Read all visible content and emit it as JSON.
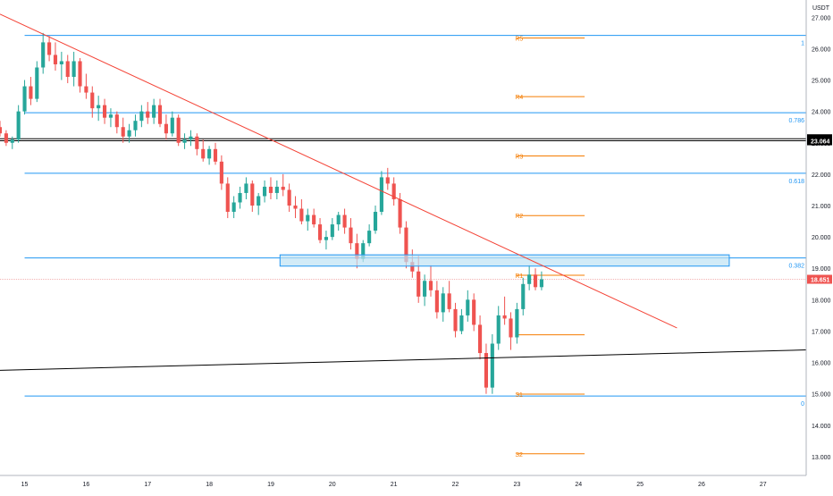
{
  "chart_data": {
    "type": "candlestick",
    "currency": "USDT",
    "y_axis": {
      "min": 12.4,
      "max": 27.55,
      "ticks": [
        "27.000",
        "26.000",
        "25.000",
        "24.000",
        "23.000",
        "22.000",
        "21.000",
        "20.000",
        "19.000",
        "18.000",
        "17.000",
        "16.000",
        "15.000",
        "14.000",
        "13.000"
      ],
      "tick_values": [
        27,
        26,
        25,
        24,
        23,
        22,
        21,
        20,
        19,
        18,
        17,
        16,
        15,
        14,
        13
      ]
    },
    "x_axis": {
      "min": 14.6,
      "max": 27.7,
      "ticks": [
        "15",
        "16",
        "17",
        "18",
        "19",
        "20",
        "21",
        "22",
        "23",
        "24",
        "25",
        "26",
        "27"
      ],
      "tick_values": [
        15,
        16,
        17,
        18,
        19,
        20,
        21,
        22,
        23,
        24,
        25,
        26,
        27
      ]
    },
    "price_badges": [
      {
        "label": "23.129",
        "value": 23.129,
        "bg": "#000000",
        "fg": "#ffffff"
      },
      {
        "label": "23.064",
        "value": 23.064,
        "bg": "#000000",
        "fg": "#ffffff"
      },
      {
        "label": "18.651",
        "value": 18.651,
        "bg": "#ef5350",
        "fg": "#ffffff"
      }
    ],
    "fib_levels": [
      {
        "label": "1",
        "value": 26.42
      },
      {
        "label": "0.786",
        "value": 23.96
      },
      {
        "label": "0.618",
        "value": 22.03
      },
      {
        "label": "0.382",
        "value": 19.33
      },
      {
        "label": "0",
        "value": 14.93
      }
    ],
    "pivot_levels": [
      {
        "label": "R5",
        "value": 26.34
      },
      {
        "label": "R4",
        "value": 24.47
      },
      {
        "label": "R3",
        "value": 22.58
      },
      {
        "label": "R2",
        "value": 20.68
      },
      {
        "label": "R1",
        "value": 18.78
      },
      {
        "label": "",
        "value": 16.88
      },
      {
        "label": "S1",
        "value": 14.99
      },
      {
        "label": "S2",
        "value": 13.09
      }
    ],
    "pivot_range": [
      23.0,
      24.1
    ],
    "horizontal_lines": [
      23.129,
      23.064
    ],
    "zone": {
      "x1": 19.15,
      "x2": 26.45,
      "y1": 19.43,
      "y2": 19.07
    },
    "trendline_red": {
      "x1": 14.6,
      "y1": 27.1,
      "x2": 25.6,
      "y2": 17.1
    },
    "trendline_black": {
      "x1": 14.6,
      "y1": 15.75,
      "x2": 27.7,
      "y2": 16.4
    },
    "last_price_line": 18.651,
    "colors": {
      "up": "#26a69a",
      "down": "#ef5350",
      "fib": "#2196f3",
      "pivot": "#f57c00",
      "trend": "#f44336",
      "zone_fill": "#bfe3f3",
      "zone_stroke": "#2196f3",
      "last": "#ef9a9a"
    },
    "candles": [
      [
        14.6,
        23.5,
        23.7,
        23.2,
        23.3
      ],
      [
        14.7,
        23.3,
        23.4,
        22.9,
        23.0
      ],
      [
        14.8,
        23.0,
        23.2,
        22.8,
        23.1
      ],
      [
        14.9,
        23.1,
        24.2,
        23.0,
        24.0
      ],
      [
        15.0,
        24.0,
        25.0,
        23.9,
        24.8
      ],
      [
        15.1,
        24.8,
        25.1,
        24.2,
        24.4
      ],
      [
        15.2,
        24.4,
        25.6,
        24.3,
        25.4
      ],
      [
        15.3,
        25.4,
        26.5,
        25.2,
        26.2
      ],
      [
        15.4,
        26.2,
        26.4,
        25.6,
        25.8
      ],
      [
        15.5,
        25.8,
        26.2,
        25.3,
        25.5
      ],
      [
        15.6,
        25.5,
        25.9,
        25.0,
        25.6
      ],
      [
        15.7,
        25.6,
        25.8,
        24.9,
        25.1
      ],
      [
        15.8,
        25.1,
        25.9,
        24.8,
        25.6
      ],
      [
        15.9,
        25.6,
        25.7,
        24.6,
        24.8
      ],
      [
        16.0,
        24.8,
        25.2,
        24.4,
        24.6
      ],
      [
        16.1,
        24.6,
        24.8,
        23.8,
        24.1
      ],
      [
        16.2,
        24.1,
        24.5,
        23.7,
        24.2
      ],
      [
        16.3,
        24.2,
        24.4,
        23.6,
        23.8
      ],
      [
        16.4,
        23.8,
        24.1,
        23.5,
        23.9
      ],
      [
        16.5,
        23.9,
        24.0,
        23.3,
        23.5
      ],
      [
        16.6,
        23.5,
        23.8,
        23.0,
        23.2
      ],
      [
        16.7,
        23.2,
        23.6,
        23.0,
        23.4
      ],
      [
        16.8,
        23.4,
        23.9,
        23.2,
        23.7
      ],
      [
        16.9,
        23.7,
        24.2,
        23.5,
        24.0
      ],
      [
        17.0,
        24.0,
        24.3,
        23.6,
        23.8
      ],
      [
        17.1,
        23.8,
        24.4,
        23.6,
        24.2
      ],
      [
        17.2,
        24.2,
        24.4,
        23.5,
        23.6
      ],
      [
        17.3,
        23.6,
        23.9,
        23.1,
        23.3
      ],
      [
        17.4,
        23.3,
        24.0,
        23.2,
        23.8
      ],
      [
        17.5,
        23.8,
        23.9,
        22.9,
        23.0
      ],
      [
        17.6,
        23.0,
        23.3,
        22.8,
        23.1
      ],
      [
        17.7,
        23.1,
        23.4,
        22.9,
        23.2
      ],
      [
        17.8,
        23.2,
        23.3,
        22.6,
        22.8
      ],
      [
        17.9,
        22.8,
        23.1,
        22.4,
        22.5
      ],
      [
        18.0,
        22.5,
        22.9,
        22.3,
        22.8
      ],
      [
        18.1,
        22.8,
        23.0,
        22.3,
        22.4
      ],
      [
        18.2,
        22.4,
        22.6,
        21.5,
        21.7
      ],
      [
        18.3,
        21.7,
        21.9,
        20.6,
        20.8
      ],
      [
        18.4,
        20.8,
        21.3,
        20.6,
        21.1
      ],
      [
        18.5,
        21.1,
        21.6,
        20.9,
        21.4
      ],
      [
        18.6,
        21.4,
        21.9,
        21.2,
        21.7
      ],
      [
        18.7,
        21.7,
        21.8,
        20.8,
        21.0
      ],
      [
        18.8,
        21.0,
        21.4,
        20.7,
        21.3
      ],
      [
        18.9,
        21.3,
        21.8,
        21.1,
        21.6
      ],
      [
        19.0,
        21.6,
        21.9,
        21.2,
        21.4
      ],
      [
        19.1,
        21.4,
        21.8,
        21.2,
        21.6
      ],
      [
        19.2,
        21.6,
        22.0,
        21.3,
        21.5
      ],
      [
        19.3,
        21.5,
        21.7,
        20.8,
        21.0
      ],
      [
        19.4,
        21.0,
        21.3,
        20.6,
        20.9
      ],
      [
        19.5,
        20.9,
        21.2,
        20.4,
        20.5
      ],
      [
        19.6,
        20.5,
        20.9,
        20.2,
        20.7
      ],
      [
        19.7,
        20.7,
        20.9,
        20.3,
        20.4
      ],
      [
        19.8,
        20.4,
        20.6,
        19.8,
        19.9
      ],
      [
        19.9,
        19.9,
        20.2,
        19.6,
        20.0
      ],
      [
        20.0,
        20.0,
        20.6,
        19.9,
        20.4
      ],
      [
        20.1,
        20.4,
        20.8,
        20.2,
        20.7
      ],
      [
        20.2,
        20.7,
        20.9,
        20.1,
        20.3
      ],
      [
        20.3,
        20.3,
        20.6,
        19.6,
        19.8
      ],
      [
        20.4,
        19.8,
        20.1,
        19.0,
        19.3
      ],
      [
        20.5,
        19.3,
        19.9,
        19.2,
        19.8
      ],
      [
        20.6,
        19.8,
        20.4,
        19.7,
        20.2
      ],
      [
        20.7,
        20.2,
        21.0,
        20.1,
        20.8
      ],
      [
        20.8,
        20.8,
        22.1,
        20.7,
        21.9
      ],
      [
        20.9,
        21.9,
        22.2,
        21.5,
        21.7
      ],
      [
        21.0,
        21.7,
        21.9,
        21.0,
        21.2
      ],
      [
        21.1,
        21.2,
        21.4,
        20.1,
        20.3
      ],
      [
        21.2,
        20.3,
        20.5,
        19.0,
        19.2
      ],
      [
        21.3,
        19.2,
        19.6,
        18.7,
        18.9
      ],
      [
        21.4,
        18.9,
        19.4,
        17.9,
        18.1
      ],
      [
        21.5,
        18.1,
        18.8,
        17.8,
        18.6
      ],
      [
        21.6,
        18.6,
        19.1,
        18.1,
        18.3
      ],
      [
        21.7,
        18.3,
        18.6,
        17.4,
        17.6
      ],
      [
        21.8,
        17.6,
        18.4,
        17.3,
        18.2
      ],
      [
        21.9,
        18.2,
        18.6,
        17.6,
        17.7
      ],
      [
        22.0,
        17.7,
        17.9,
        16.8,
        17.0
      ],
      [
        22.1,
        17.0,
        17.7,
        16.9,
        17.5
      ],
      [
        22.2,
        17.5,
        18.3,
        17.3,
        18.0
      ],
      [
        22.3,
        18.0,
        18.2,
        17.0,
        17.2
      ],
      [
        22.4,
        17.2,
        17.5,
        16.1,
        16.3
      ],
      [
        22.5,
        16.3,
        16.6,
        15.0,
        15.2
      ],
      [
        22.6,
        15.2,
        16.9,
        15.0,
        16.6
      ],
      [
        22.7,
        16.6,
        17.8,
        16.4,
        17.5
      ],
      [
        22.8,
        17.5,
        18.1,
        17.2,
        17.4
      ],
      [
        22.9,
        17.4,
        17.6,
        16.4,
        16.8
      ],
      [
        23.0,
        16.8,
        17.9,
        16.6,
        17.7
      ],
      [
        23.1,
        17.7,
        18.7,
        17.5,
        18.5
      ],
      [
        23.2,
        18.5,
        19.1,
        18.3,
        18.8
      ],
      [
        23.3,
        18.8,
        19.0,
        18.3,
        18.4
      ],
      [
        23.4,
        18.4,
        18.9,
        18.3,
        18.65
      ]
    ]
  }
}
